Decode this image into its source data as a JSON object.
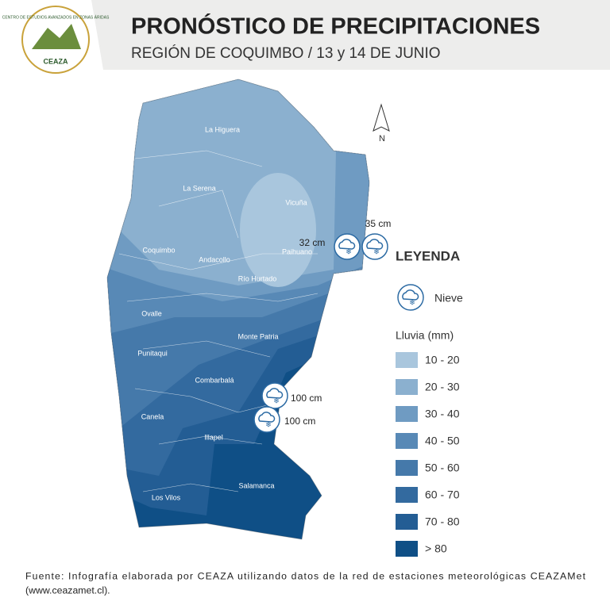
{
  "header": {
    "logo_text": "CENTRO DE ESTUDIOS AVANZADOS EN ZONAS ÁRIDAS",
    "logo_name": "CEAZA",
    "title": "PRONÓSTICO DE PRECIPITACIONES",
    "subtitle": "REGIÓN DE COQUIMBO / 13 y 14 DE JUNIO"
  },
  "map": {
    "north": "N",
    "places": [
      {
        "label": "La Higuera"
      },
      {
        "label": "La Serena"
      },
      {
        "label": "Vicuña"
      },
      {
        "label": "Coquimbo"
      },
      {
        "label": "Andacollo"
      },
      {
        "label": "Paihuano"
      },
      {
        "label": "Río Hurtado"
      },
      {
        "label": "Ovalle"
      },
      {
        "label": "Monte Patria"
      },
      {
        "label": "Punitaqui"
      },
      {
        "label": "Combarbalá"
      },
      {
        "label": "Canela"
      },
      {
        "label": "Illapel"
      },
      {
        "label": "Salamanca"
      },
      {
        "label": "Los Vilos"
      }
    ],
    "snow": [
      {
        "label": "35 cm"
      },
      {
        "label": "32 cm"
      },
      {
        "label": "100 cm"
      },
      {
        "label": "100 cm"
      }
    ]
  },
  "legend": {
    "title": "LEYENDA",
    "snow": "Nieve",
    "rain_title": "Lluvia (mm)",
    "rain": [
      {
        "label": "10 - 20",
        "color": "#a9c6dd"
      },
      {
        "label": "20 - 30",
        "color": "#8bb0cf"
      },
      {
        "label": "30 - 40",
        "color": "#6f9bc2"
      },
      {
        "label": "40 - 50",
        "color": "#5889b6"
      },
      {
        "label": "50 - 60",
        "color": "#4579aa"
      },
      {
        "label": "60 - 70",
        "color": "#336a9f"
      },
      {
        "label": "70 - 80",
        "color": "#235d94"
      },
      {
        "label": "> 80",
        "color": "#0f4f86"
      }
    ]
  },
  "footer": {
    "line1": "Fuente: Infografía elaborada por CEAZA utilizando datos de la red de estaciones meteorológicas CEAZAMet",
    "line2": "(www.ceazamet.cl)."
  }
}
